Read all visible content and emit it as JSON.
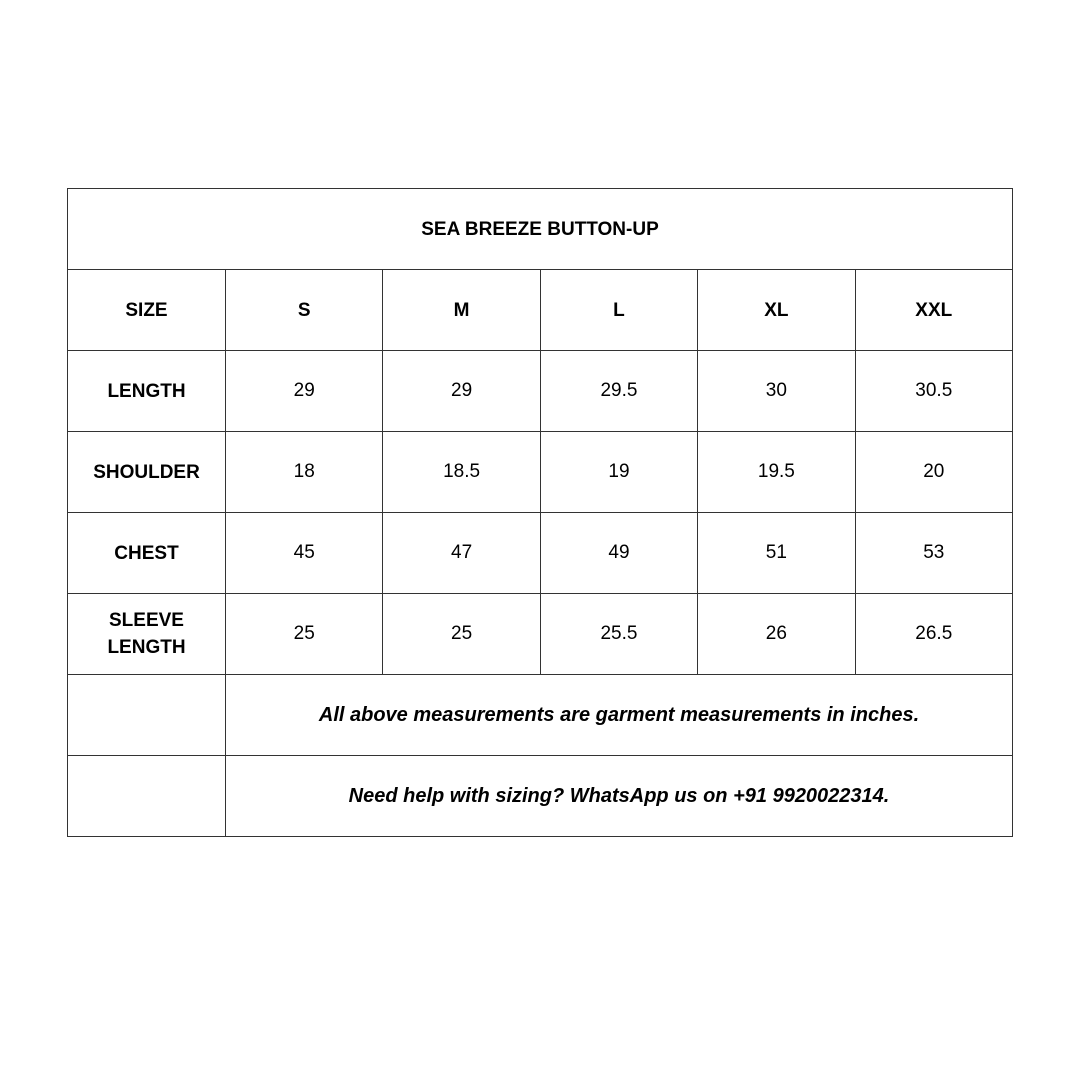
{
  "title": "SEA BREEZE BUTTON-UP",
  "header": {
    "label": "SIZE",
    "sizes": [
      "S",
      "M",
      "L",
      "XL",
      "XXL"
    ]
  },
  "rows": [
    {
      "label": "LENGTH",
      "values": [
        "29",
        "29",
        "29.5",
        "30",
        "30.5"
      ]
    },
    {
      "label": "SHOULDER",
      "values": [
        "18",
        "18.5",
        "19",
        "19.5",
        "20"
      ]
    },
    {
      "label": "CHEST",
      "values": [
        "45",
        "47",
        "49",
        "51",
        "53"
      ]
    },
    {
      "label": "SLEEVE LENGTH",
      "values": [
        "25",
        "25",
        "25.5",
        "26",
        "26.5"
      ]
    }
  ],
  "notes": [
    "All above measurements are garment measurements in inches.",
    "Need help with sizing? WhatsApp us on +91 9920022314."
  ]
}
